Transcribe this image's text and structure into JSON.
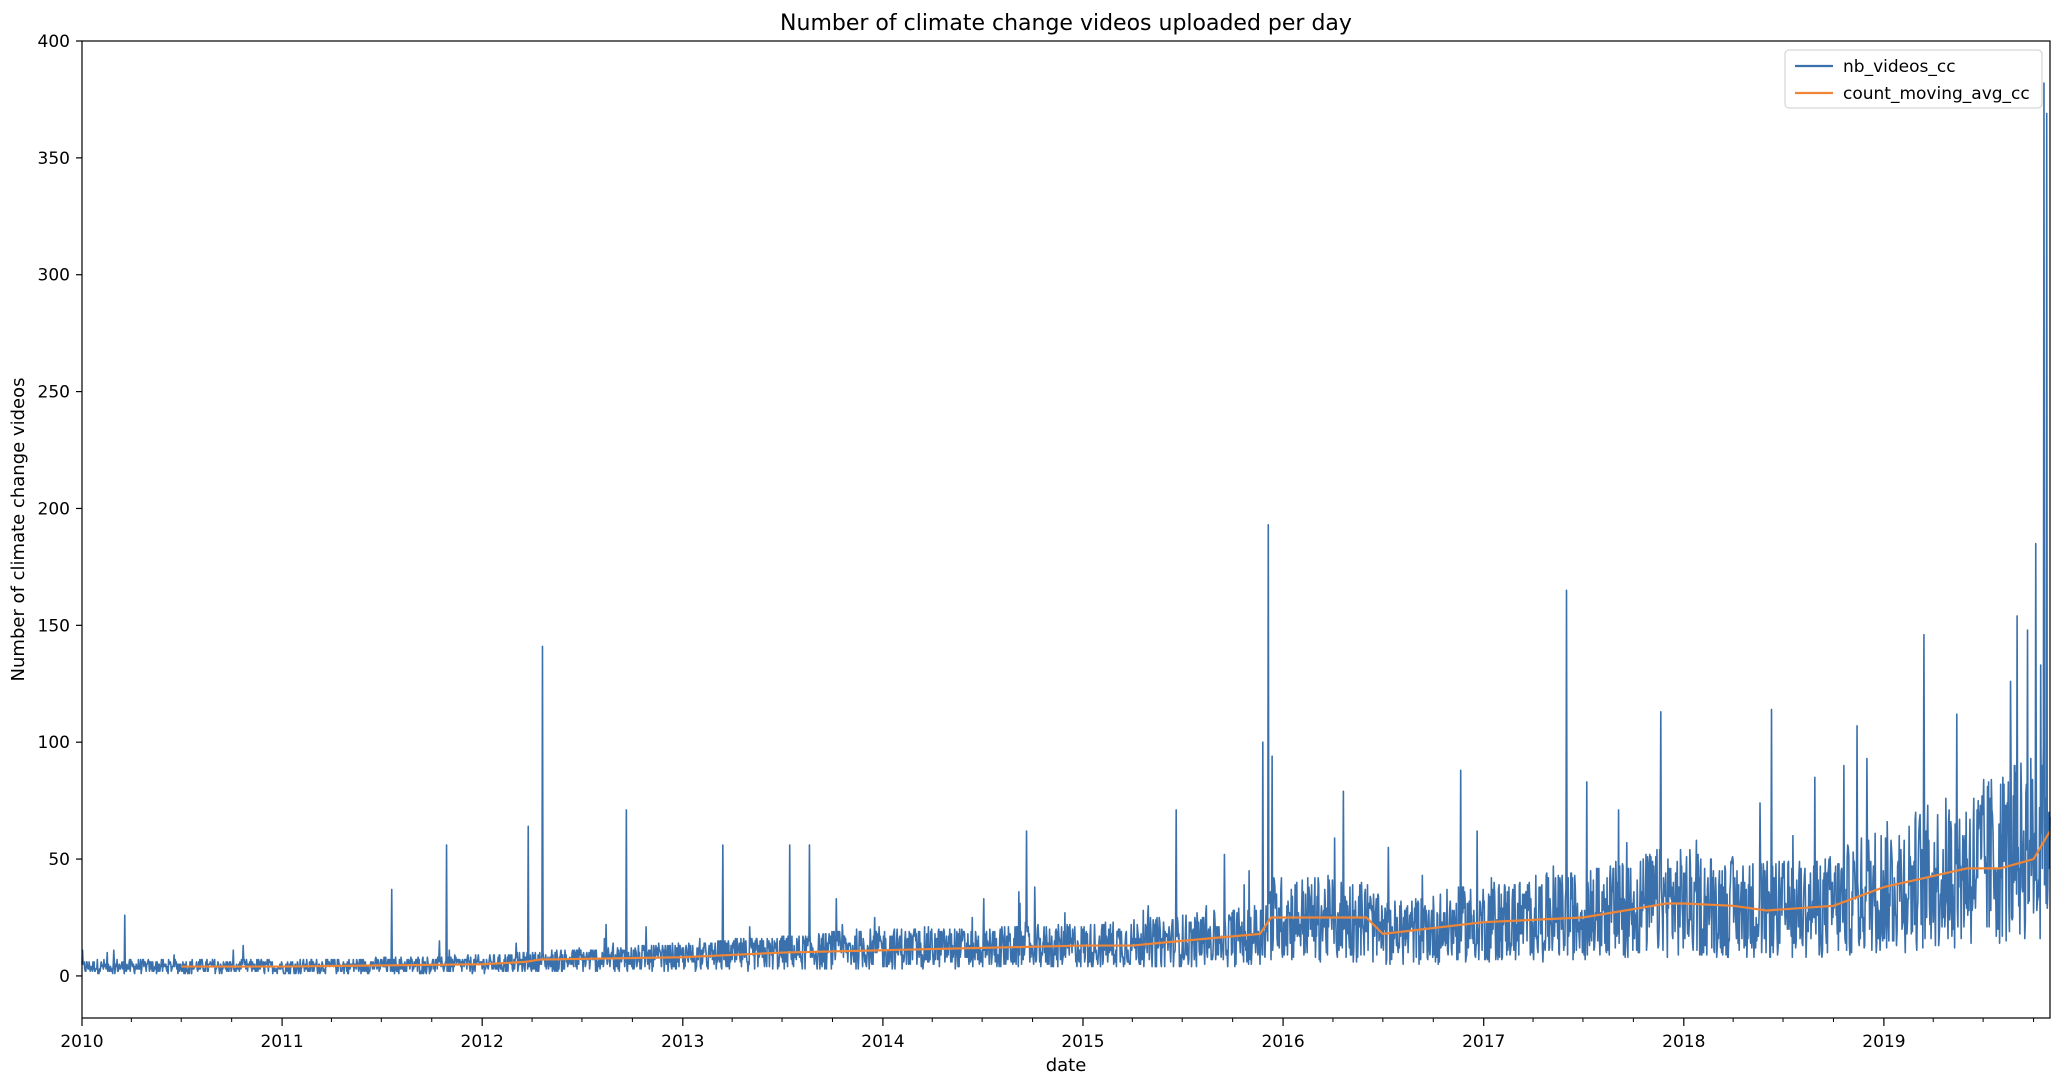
{
  "chart_data": {
    "type": "line",
    "title": "Number of climate change videos uploaded per day",
    "xlabel": "date",
    "ylabel": "Number of climate change videos",
    "xlim": [
      "2010-01-01",
      "2019-10-31"
    ],
    "ylim": [
      -18,
      400
    ],
    "x_ticks": [
      "2010",
      "2011",
      "2012",
      "2013",
      "2014",
      "2015",
      "2016",
      "2017",
      "2018",
      "2019"
    ],
    "y_ticks": [
      0,
      50,
      100,
      150,
      200,
      250,
      300,
      350,
      400
    ],
    "grid": false,
    "legend_position": "top-right",
    "series": [
      {
        "name": "nb_videos_cc",
        "color": "#3a70ab",
        "style": "daily-noisy",
        "baseline": [
          [
            "2010-01-01",
            4
          ],
          [
            "2011-01-01",
            4
          ],
          [
            "2012-01-01",
            5
          ],
          [
            "2012-07-01",
            7
          ],
          [
            "2013-01-01",
            8
          ],
          [
            "2013-07-01",
            10
          ],
          [
            "2014-01-01",
            12
          ],
          [
            "2014-07-01",
            12
          ],
          [
            "2015-01-01",
            13
          ],
          [
            "2015-07-01",
            15
          ],
          [
            "2015-11-20",
            18
          ],
          [
            "2015-12-10",
            25
          ],
          [
            "2016-06-01",
            24
          ],
          [
            "2016-07-01",
            18
          ],
          [
            "2017-01-01",
            23
          ],
          [
            "2017-07-01",
            26
          ],
          [
            "2017-12-01",
            32
          ],
          [
            "2018-06-01",
            28
          ],
          [
            "2018-10-01",
            30
          ],
          [
            "2019-01-01",
            38
          ],
          [
            "2019-06-01",
            46
          ],
          [
            "2019-10-31",
            58
          ]
        ],
        "peaks": [
          [
            "2010-03-20",
            26
          ],
          [
            "2011-07-20",
            37
          ],
          [
            "2011-10-28",
            56
          ],
          [
            "2012-03-25",
            64
          ],
          [
            "2012-04-20",
            141
          ],
          [
            "2012-09-20",
            71
          ],
          [
            "2013-03-15",
            56
          ],
          [
            "2013-07-15",
            56
          ],
          [
            "2013-08-20",
            56
          ],
          [
            "2014-09-20",
            62
          ],
          [
            "2015-06-20",
            71
          ],
          [
            "2015-11-25",
            100
          ],
          [
            "2015-12-05",
            193
          ],
          [
            "2015-12-12",
            94
          ],
          [
            "2016-04-20",
            79
          ],
          [
            "2016-11-20",
            88
          ],
          [
            "2017-06-01",
            165
          ],
          [
            "2017-11-20",
            113
          ],
          [
            "2018-06-10",
            114
          ],
          [
            "2018-12-01",
            93
          ],
          [
            "2019-03-15",
            146
          ],
          [
            "2019-08-20",
            126
          ],
          [
            "2019-09-20",
            148
          ],
          [
            "2019-10-05",
            185
          ],
          [
            "2019-10-20",
            382
          ],
          [
            "2019-10-25",
            369
          ]
        ]
      },
      {
        "name": "count_moving_avg_cc",
        "color": "#ef8536",
        "points": [
          [
            "2010-07-01",
            4
          ],
          [
            "2011-01-01",
            4
          ],
          [
            "2012-01-01",
            5
          ],
          [
            "2012-03-20",
            6
          ],
          [
            "2012-04-15",
            7
          ],
          [
            "2013-01-01",
            8
          ],
          [
            "2013-07-01",
            10
          ],
          [
            "2014-01-01",
            11
          ],
          [
            "2014-07-01",
            12
          ],
          [
            "2015-01-01",
            13
          ],
          [
            "2015-04-01",
            13
          ],
          [
            "2015-07-01",
            15
          ],
          [
            "2015-11-20",
            18
          ],
          [
            "2015-12-10",
            25
          ],
          [
            "2016-06-01",
            25
          ],
          [
            "2016-07-01",
            18
          ],
          [
            "2017-01-01",
            23
          ],
          [
            "2017-07-01",
            25
          ],
          [
            "2017-12-01",
            31
          ],
          [
            "2018-01-01",
            31
          ],
          [
            "2018-04-01",
            30
          ],
          [
            "2018-06-01",
            28
          ],
          [
            "2018-10-01",
            30
          ],
          [
            "2019-01-01",
            38
          ],
          [
            "2019-06-01",
            46
          ],
          [
            "2019-08-01",
            46
          ],
          [
            "2019-10-01",
            50
          ],
          [
            "2019-10-31",
            62
          ]
        ]
      }
    ]
  }
}
